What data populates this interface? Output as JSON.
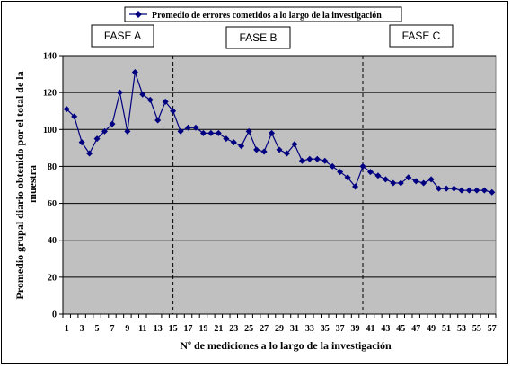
{
  "chart_data": {
    "type": "line",
    "title": "",
    "xlabel": "Nº de mediciones a lo largo de la investigación",
    "ylabel": "Promedio grupal diario obtenido por el total de la muestra",
    "ylim": [
      0,
      140
    ],
    "xlim": [
      1,
      57
    ],
    "yticks": [
      0,
      20,
      40,
      60,
      80,
      100,
      120,
      140
    ],
    "xticks": [
      1,
      3,
      5,
      7,
      9,
      11,
      13,
      15,
      17,
      19,
      21,
      23,
      25,
      27,
      29,
      31,
      33,
      35,
      37,
      39,
      41,
      43,
      45,
      47,
      49,
      51,
      53,
      55,
      57
    ],
    "grid": true,
    "legend_position": "top-center",
    "colors": {
      "series": "#000080",
      "plot_bg": "#c0c0c0"
    },
    "phase_dividers": [
      15,
      40
    ],
    "phases": [
      "FASE A",
      "FASE B",
      "FASE C"
    ],
    "series": [
      {
        "name": "Promedio de errores cometidos a lo largo de la investigación",
        "x": [
          1,
          2,
          3,
          4,
          5,
          6,
          7,
          8,
          9,
          10,
          11,
          12,
          13,
          14,
          15,
          16,
          17,
          18,
          19,
          20,
          21,
          22,
          23,
          24,
          25,
          26,
          27,
          28,
          29,
          30,
          31,
          32,
          33,
          34,
          35,
          36,
          37,
          38,
          39,
          40,
          41,
          42,
          43,
          44,
          45,
          46,
          47,
          48,
          49,
          50,
          51,
          52,
          53,
          54,
          55,
          56,
          57
        ],
        "values": [
          111,
          107,
          93,
          87,
          95,
          99,
          103,
          120,
          99,
          131,
          119,
          116,
          105,
          115,
          110,
          99,
          101,
          101,
          98,
          98,
          98,
          95,
          93,
          91,
          99,
          89,
          88,
          98,
          89,
          87,
          92,
          83,
          84,
          84,
          83,
          80,
          77,
          74,
          69,
          80,
          77,
          75,
          73,
          71,
          71,
          74,
          72,
          71,
          73,
          68,
          68,
          68,
          67,
          67,
          67,
          67,
          66
        ]
      }
    ]
  }
}
